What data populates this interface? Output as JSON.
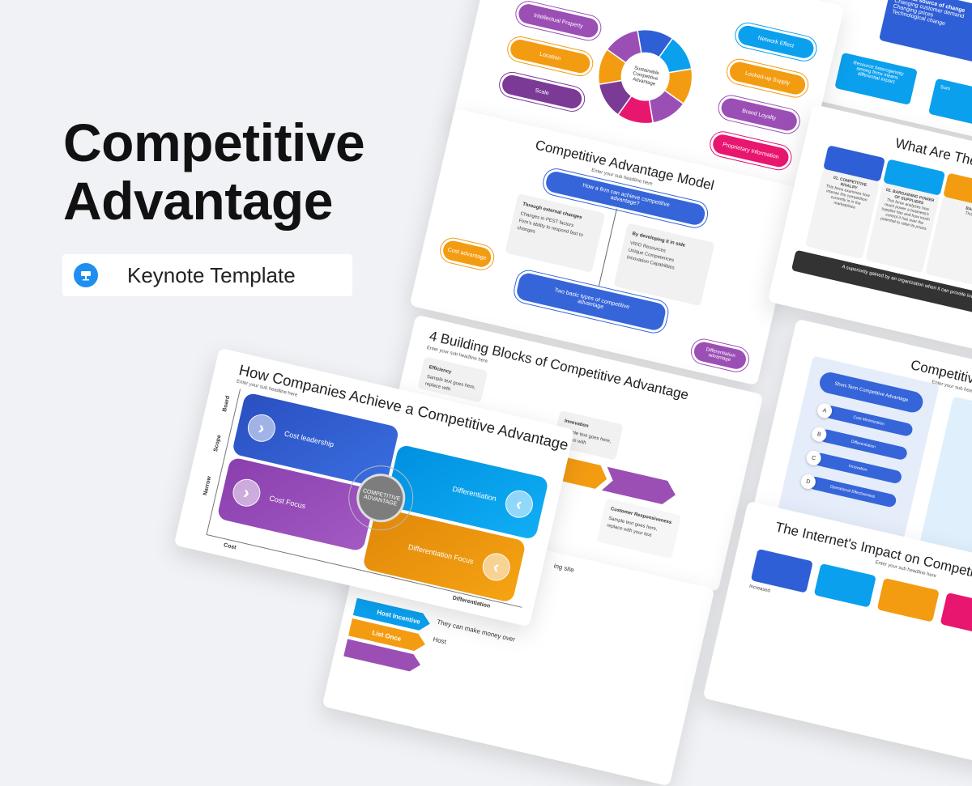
{
  "hero": {
    "title_line1": "Competitive",
    "title_line2": "Advantage",
    "badge_label": "Keynote Template",
    "badge_icon": "keynote-podium-icon"
  },
  "colors": {
    "blue": "#2f5fd6",
    "light_blue": "#0aa0ee",
    "orange": "#f39c12",
    "purple": "#9b4fb5",
    "dark_purple": "#7a3a96",
    "pink": "#e8166f",
    "grey": "#7d7d7d"
  },
  "slides": {
    "wheel": {
      "center_label": "Sustainable Competitive Advantage",
      "left_pills": [
        "Intellectual Property",
        "Location",
        "Scale"
      ],
      "right_pills": [
        "Network Effect",
        "Locked-up Supply",
        "Brand Loyalty",
        "Proprietary Information"
      ]
    },
    "model": {
      "title": "Competitive Advantage Model",
      "subtitle": "Enter your sub headline here",
      "top_box": "How a firm can achieve competitive advantage?",
      "left_box": {
        "heading": "Through external changes",
        "items": [
          "Changes in PEST factors",
          "Firm's ability to respond fast to changes"
        ]
      },
      "right_box": {
        "heading": "By developing it in side",
        "items": [
          "VRIO Resources",
          "Unique Competences",
          "Innovation Capabilities"
        ]
      },
      "bottom_box": "Two basic types of competitive advantage",
      "cost_pill": "Cost advantage",
      "diff_pill": "Differentiation advantage"
    },
    "blocks": {
      "title": "4 Building Blocks of Competitive Advantage",
      "subtitle": "Enter your sub headline here",
      "efficiency": {
        "heading": "Efficiency",
        "text": "Sample text goes here, replace with"
      },
      "innovation": {
        "heading": "Innovation",
        "text": "Sample text goes here, replace with"
      },
      "customer": {
        "heading": "Customer Responsiveness",
        "text": "Sample text goes here, replace with your text"
      }
    },
    "main": {
      "title": "How Companies Achieve a Competitive Advantage",
      "subtitle": "Enter your sub headline here",
      "quadrants": [
        "Cost leadership",
        "Differentiation",
        "Cost Focus",
        "Differentiation Focus"
      ],
      "center": "COMPETITIVE ADVANTAGE",
      "y_axis": {
        "top": "Board",
        "mid": "Scope",
        "bottom": "Narrow"
      },
      "x_axis": {
        "left": "Cost",
        "right": "Differentiation"
      }
    },
    "bottom": {
      "items": [
        "Host Incentive",
        "List Once",
        "Host"
      ],
      "texts": [
        "They can make money over",
        "ing site"
      ]
    },
    "external": {
      "top_box": {
        "heading": "External source of change",
        "items": [
          "Changing customer demand",
          "Changing prices",
          "Technological change"
        ]
      },
      "left_box": "Resource heterogeneity among firms means differential impact",
      "right_box": "Sum"
    },
    "what": {
      "title": "What Are The",
      "cards": [
        {
          "heading": "01. COMPETITIVE RIVALRY",
          "text": "This force examines how intense the competition currently is in the marketplace"
        },
        {
          "heading": "02. BARGAINING POWER OF SUPPLIERS",
          "text": "This force analyzes how much power a business's supplier has and how much control it has over the potential to raise its prices"
        },
        {
          "heading": "BAR",
          "text": "This"
        }
      ],
      "footer": "A superiority gained by an organization when it can provide lower price, or can charge higher prices"
    },
    "cadv": {
      "title": "Competitive Ad",
      "subtitle": "Enter your sub headline",
      "header": "Short-Term Competitive Advantage",
      "steps": [
        {
          "letter": "A",
          "label": "Cost Minimization"
        },
        {
          "letter": "B",
          "label": "Differentiation"
        },
        {
          "letter": "C",
          "label": "Innovation"
        },
        {
          "letter": "D",
          "label": "Operational Effectiveness"
        }
      ]
    },
    "internet": {
      "title": "The Internet's Impact on Competitive",
      "subtitle": "Enter your sub headline here",
      "card_text": "Increased"
    }
  }
}
